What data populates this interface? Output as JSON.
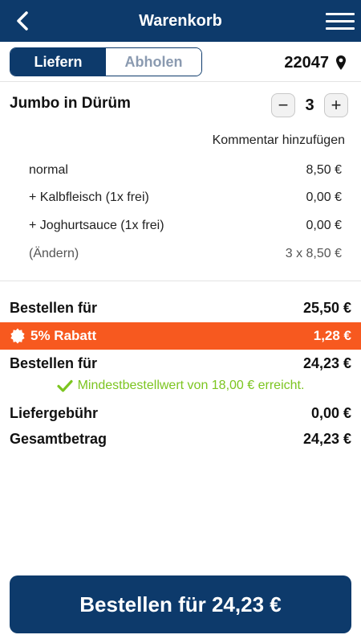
{
  "header": {
    "title": "Warenkorb",
    "back_icon": "chevron-left-icon",
    "menu_icon": "hamburger-menu-icon"
  },
  "delivery_mode": {
    "options": [
      "Liefern",
      "Abholen"
    ],
    "selected": "Liefern"
  },
  "location": {
    "postal_code": "22047",
    "icon": "map-pin-icon"
  },
  "cart_item": {
    "name": "Jumbo in Dürüm",
    "quantity": "3",
    "decrease_label": "−",
    "increase_label": "+",
    "comment_link": "Kommentar hinzufügen",
    "lines": [
      {
        "label": "normal",
        "value": "8,50 €"
      },
      {
        "label": "+ Kalbfleisch (1x frei)",
        "value": "0,00 €"
      },
      {
        "label": "+ Joghurtsauce (1x frei)",
        "value": "0,00 €"
      },
      {
        "label": "(Ändern)",
        "value": "3 x 8,50 €"
      }
    ]
  },
  "summary": {
    "subtotal_label": "Bestellen für",
    "subtotal_value": "25,50 €",
    "discount_label": "5% Rabatt",
    "discount_value": "1,28 €",
    "after_discount_label": "Bestellen für",
    "after_discount_value": "24,23 €",
    "min_order_message": "Mindestbestellwert von 18,00 € erreicht.",
    "delivery_fee_label": "Liefergebühr",
    "delivery_fee_value": "0,00 €",
    "total_label": "Gesamtbetrag",
    "total_value": "24,23 €"
  },
  "order_button": {
    "label": "Bestellen für 24,23 €"
  },
  "colors": {
    "primary": "#0d3a6b",
    "discount": "#f7591f",
    "success": "#7cc520"
  }
}
